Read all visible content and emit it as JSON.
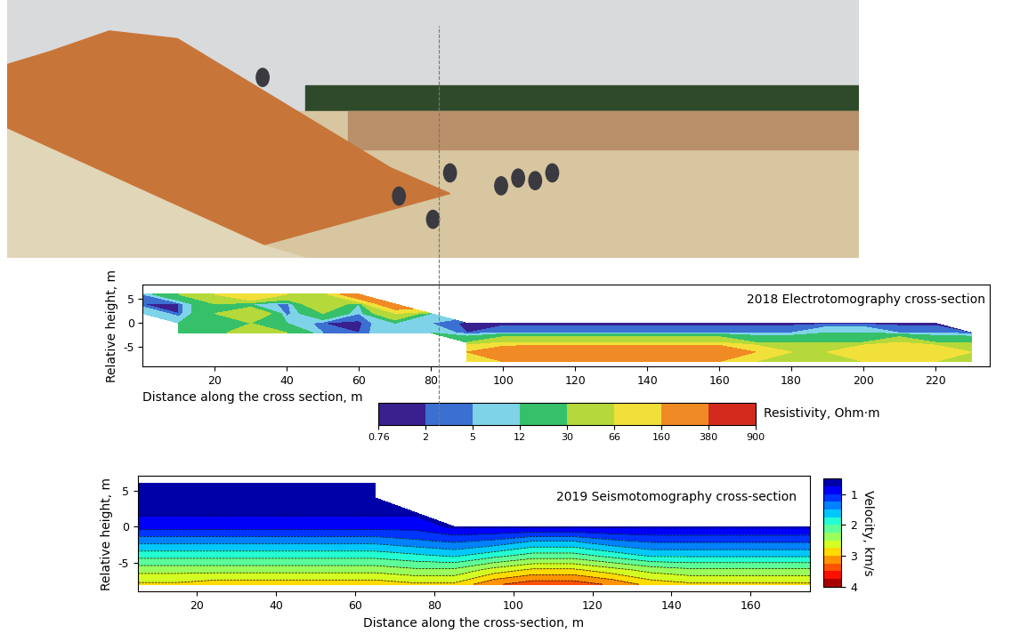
{
  "chart_data": [
    {
      "type": "contour",
      "title": "2018 Electrotomography cross-section",
      "x_label": "Distance along the cross section, m",
      "y_label": "Relative height, m",
      "x": [
        0,
        10,
        20,
        30,
        40,
        50,
        60,
        70,
        80,
        90,
        100,
        110,
        120,
        130,
        140,
        150,
        160,
        170,
        180,
        190,
        200,
        210,
        220,
        230
      ],
      "y": [
        -8,
        -6,
        -4,
        -2,
        0,
        2,
        4,
        6
      ],
      "values": [
        [
          null,
          null,
          null,
          null,
          null,
          null,
          null,
          null,
          null,
          66,
          160,
          300,
          300,
          300,
          300,
          300,
          160,
          66,
          30,
          30,
          66,
          160,
          66,
          30
        ],
        [
          null,
          null,
          null,
          null,
          null,
          null,
          null,
          null,
          null,
          160,
          300,
          380,
          380,
          380,
          380,
          380,
          380,
          160,
          66,
          66,
          160,
          160,
          160,
          66
        ],
        [
          null,
          null,
          null,
          null,
          null,
          null,
          null,
          null,
          null,
          30,
          66,
          66,
          66,
          66,
          66,
          66,
          66,
          30,
          30,
          30,
          30,
          66,
          30,
          30
        ],
        [
          null,
          30,
          12,
          66,
          30,
          5,
          2,
          12,
          12,
          2,
          5,
          5,
          5,
          5,
          5,
          5,
          5,
          5,
          5,
          12,
          12,
          5,
          5,
          2
        ],
        [
          null,
          12,
          30,
          30,
          12,
          2,
          1,
          12,
          5,
          1,
          1,
          1,
          1,
          1,
          1,
          1,
          1,
          1,
          1,
          1,
          1,
          1,
          1,
          null
        ],
        [
          12,
          2,
          30,
          66,
          2,
          30,
          5,
          66,
          12,
          null,
          null,
          null,
          null,
          null,
          null,
          null,
          null,
          null,
          null,
          null,
          null,
          null,
          null,
          null
        ],
        [
          2,
          2,
          30,
          12,
          2,
          66,
          12,
          300,
          null,
          null,
          null,
          null,
          null,
          null,
          null,
          null,
          null,
          null,
          null,
          null,
          null,
          null,
          null,
          null
        ],
        [
          5,
          30,
          66,
          160,
          66,
          30,
          300,
          null,
          null,
          null,
          null,
          null,
          null,
          null,
          null,
          null,
          null,
          null,
          null,
          null,
          null,
          null,
          null,
          null
        ]
      ],
      "xlim": [
        0,
        235
      ],
      "ylim": [
        -9,
        8
      ],
      "xticks": [
        20,
        40,
        60,
        80,
        100,
        120,
        140,
        160,
        180,
        200,
        220
      ],
      "yticks": [
        -5,
        0,
        5
      ],
      "colorbar": {
        "label": "Resistivity, Ohm·m",
        "range": [
          0.76,
          900
        ],
        "ticks": [
          0.76,
          2,
          5,
          12,
          30,
          66,
          160,
          380,
          900
        ]
      }
    },
    {
      "type": "contour",
      "title": "2019 Seismotomography cross-section",
      "x_label": "Distance along the cross-section, m",
      "y_label": "Relative height, m",
      "x": [
        5,
        15,
        25,
        35,
        45,
        55,
        65,
        75,
        85,
        95,
        105,
        115,
        125,
        135,
        145,
        155,
        165,
        175
      ],
      "y": [
        -8,
        -6,
        -4,
        -2,
        0,
        2,
        4,
        6
      ],
      "values": [
        [
          2.8,
          2.8,
          2.9,
          2.9,
          2.9,
          2.9,
          2.9,
          2.8,
          2.8,
          3.2,
          3.4,
          3.4,
          3.2,
          2.9,
          2.8,
          2.8,
          2.8,
          2.8
        ],
        [
          2.4,
          2.4,
          2.4,
          2.4,
          2.4,
          2.4,
          2.4,
          2.3,
          2.3,
          2.6,
          2.8,
          2.8,
          2.6,
          2.4,
          2.3,
          2.3,
          2.3,
          2.3
        ],
        [
          1.9,
          1.9,
          1.9,
          1.9,
          1.9,
          1.9,
          1.9,
          1.8,
          1.7,
          1.9,
          2.1,
          2.1,
          1.9,
          1.7,
          1.7,
          1.7,
          1.7,
          1.7
        ],
        [
          1.4,
          1.4,
          1.4,
          1.4,
          1.4,
          1.4,
          1.4,
          1.3,
          1.2,
          1.3,
          1.5,
          1.5,
          1.3,
          1.2,
          1.2,
          1.2,
          1.2,
          1.2
        ],
        [
          0.9,
          0.9,
          0.9,
          0.9,
          0.9,
          0.9,
          0.9,
          0.9,
          0.7,
          0.7,
          0.7,
          0.7,
          0.7,
          0.7,
          0.7,
          0.7,
          0.7,
          0.7
        ],
        [
          0.7,
          0.7,
          0.7,
          0.7,
          0.7,
          0.7,
          0.7,
          0.7,
          null,
          null,
          null,
          null,
          null,
          null,
          null,
          null,
          null,
          null
        ],
        [
          0.6,
          0.6,
          0.6,
          0.6,
          0.6,
          0.6,
          0.6,
          null,
          null,
          null,
          null,
          null,
          null,
          null,
          null,
          null,
          null,
          null
        ],
        [
          0.6,
          0.6,
          0.6,
          0.6,
          0.6,
          0.6,
          0.6,
          null,
          null,
          null,
          null,
          null,
          null,
          null,
          null,
          null,
          null,
          null
        ]
      ],
      "xlim": [
        5,
        175
      ],
      "ylim": [
        -9,
        7
      ],
      "xticks": [
        20,
        40,
        60,
        80,
        100,
        120,
        140,
        160
      ],
      "yticks": [
        -5,
        0,
        5
      ],
      "colorbar": {
        "label": "Velocity, km/s",
        "range": [
          0.5,
          4
        ],
        "ticks": [
          1,
          2,
          3,
          4
        ]
      }
    }
  ]
}
